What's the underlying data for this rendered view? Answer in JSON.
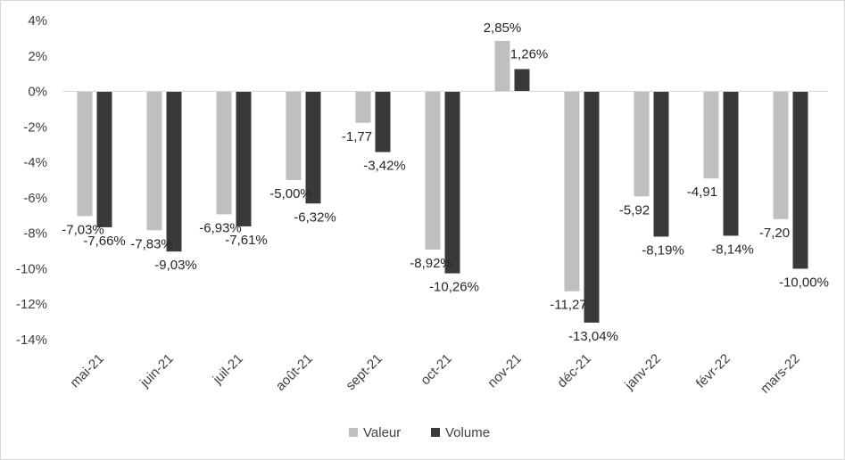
{
  "chart_data": {
    "type": "bar",
    "categories": [
      "mai-21",
      "juin-21",
      "juil-21",
      "août-21",
      "sept-21",
      "oct-21",
      "nov-21",
      "déc-21",
      "janv-22",
      "févr-22",
      "mars-22"
    ],
    "series": [
      {
        "name": "Valeur",
        "color": "#bfbfbf",
        "values": [
          -7.03,
          -7.83,
          -6.93,
          -5.0,
          -1.77,
          -8.92,
          2.85,
          -11.27,
          -5.92,
          -4.91,
          -7.2
        ],
        "labels": [
          "-7,03%",
          "-7,83%",
          "-6,93%",
          "-5,00%",
          "-1,77",
          "-8,92%",
          "2,85%",
          "-11,27",
          "-5,92",
          "-4,91",
          "-7,20"
        ]
      },
      {
        "name": "Volume",
        "color": "#3a3a3a",
        "values": [
          -7.66,
          -9.03,
          -7.61,
          -6.32,
          -3.42,
          -10.26,
          1.26,
          -13.04,
          -8.19,
          -8.14,
          -10.0
        ],
        "labels": [
          "-7,66%",
          "-9,03%",
          "-7,61%",
          "-6,32%",
          "-3,42%",
          "-10,26%",
          "1,26%",
          "-13,04%",
          "-8,19%",
          "-8,14%",
          "-10,00%"
        ]
      }
    ],
    "y_ticks": [
      4,
      2,
      0,
      -2,
      -4,
      -6,
      -8,
      -10,
      -12,
      -14
    ],
    "y_tick_labels": [
      "4%",
      "2%",
      "0%",
      "-2%",
      "-4%",
      "-6%",
      "-8%",
      "-10%",
      "-12%",
      "-14%"
    ],
    "ylim": [
      -14,
      4
    ],
    "grid": false,
    "legend_position": "bottom"
  }
}
